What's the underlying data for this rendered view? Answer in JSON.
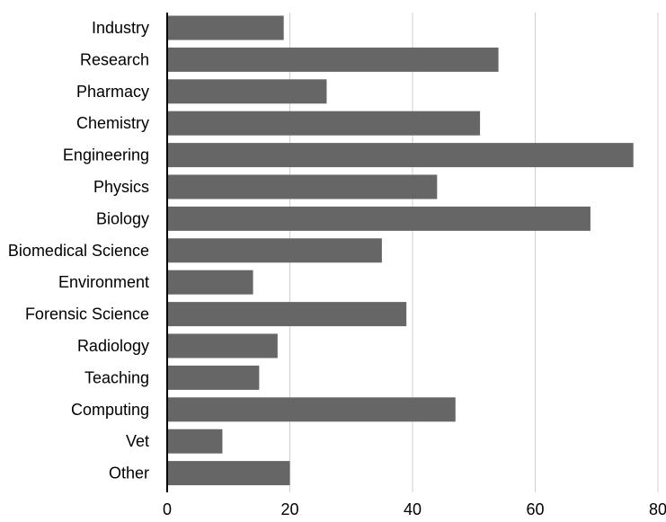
{
  "chart_data": {
    "type": "bar",
    "orientation": "horizontal",
    "categories": [
      "Industry",
      "Research",
      "Pharmacy",
      "Chemistry",
      "Engineering",
      "Physics",
      "Biology",
      "Biomedical Science",
      "Environment",
      "Forensic Science",
      "Radiology",
      "Teaching",
      "Computing",
      "Vet",
      "Other"
    ],
    "values": [
      19,
      54,
      26,
      51,
      76,
      44,
      69,
      35,
      14,
      39,
      18,
      15,
      47,
      9,
      20
    ],
    "title": "",
    "xlabel": "",
    "ylabel": "",
    "xlim": [
      0,
      80
    ],
    "xticks": [
      0,
      20,
      40,
      60,
      80
    ],
    "xtick_labels": [
      "0",
      "20",
      "40",
      "60",
      "80"
    ],
    "grid": "vertical",
    "legend": "none",
    "bar_color": "#666666",
    "grid_color": "#d0d0d0",
    "axis_color": "#000000"
  }
}
